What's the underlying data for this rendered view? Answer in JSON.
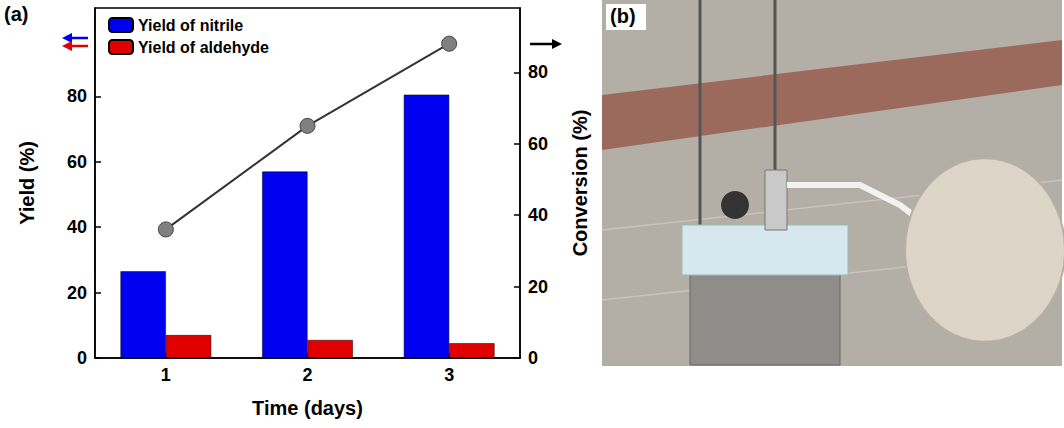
{
  "chart_data": {
    "type": "bar",
    "panel_label": "(a)",
    "x_label": "Time (days)",
    "y_label": "Yield (%)",
    "y2_label": "Conversion (%)",
    "categories": [
      "1",
      "2",
      "3"
    ],
    "series": [
      {
        "name": "Yield of nitrile",
        "color": "#0000f0",
        "values": [
          26.5,
          57,
          80.5
        ]
      },
      {
        "name": "Yield of aldehyde",
        "color": "#e00000",
        "values": [
          7,
          5.5,
          4.5
        ]
      },
      {
        "type": "line",
        "axis": "y2",
        "color": "#808080",
        "marker": "circle",
        "values": [
          36,
          65,
          88
        ]
      }
    ],
    "ylim": [
      0,
      107
    ],
    "yticks": [
      0,
      20,
      40,
      60,
      80
    ],
    "y2lim": [
      0,
      98
    ],
    "y2ticks": [
      0,
      20,
      40,
      60,
      80
    ],
    "legend": "upper left",
    "grid": false
  },
  "photo": {
    "panel_label": "(b)"
  }
}
